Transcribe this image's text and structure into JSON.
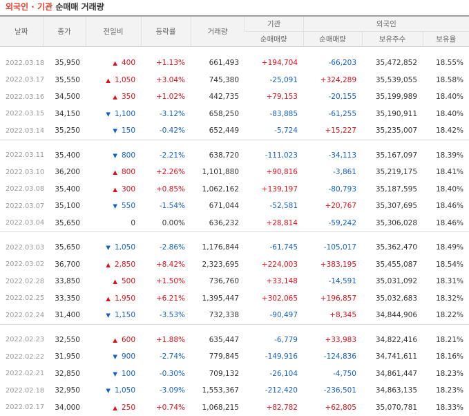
{
  "title": {
    "part1": "외국인 · 기관",
    "part2": "순매매 거래량"
  },
  "headers": {
    "date": "날짜",
    "close": "종가",
    "change": "전일비",
    "rate": "등락률",
    "volume": "거래량",
    "inst": "기관",
    "foreign": "외국인",
    "inst_net": "순매매량",
    "for_net": "순매매량",
    "for_hold": "보유주수",
    "for_ratio": "보유율"
  },
  "colors": {
    "up": "#e0101a",
    "down": "#1560c5"
  },
  "groups": [
    [
      {
        "date": "2022.03.18",
        "close": "35,950",
        "dir": "up",
        "change": "400",
        "rate": "+1.13%",
        "volume": "661,493",
        "inst": "+194,704",
        "foreign": "-66,203",
        "hold": "35,472,852",
        "ratio": "18.55%"
      },
      {
        "date": "2022.03.17",
        "close": "35,550",
        "dir": "up",
        "change": "1,050",
        "rate": "+3.04%",
        "volume": "745,380",
        "inst": "-25,091",
        "foreign": "+324,289",
        "hold": "35,539,055",
        "ratio": "18.58%"
      },
      {
        "date": "2022.03.16",
        "close": "34,500",
        "dir": "up",
        "change": "350",
        "rate": "+1.02%",
        "volume": "442,735",
        "inst": "+79,153",
        "foreign": "-20,155",
        "hold": "35,199,989",
        "ratio": "18.40%"
      },
      {
        "date": "2022.03.15",
        "close": "34,150",
        "dir": "down",
        "change": "1,100",
        "rate": "-3.12%",
        "volume": "658,250",
        "inst": "-83,885",
        "foreign": "-61,255",
        "hold": "35,190,911",
        "ratio": "18.40%"
      },
      {
        "date": "2022.03.14",
        "close": "35,250",
        "dir": "down",
        "change": "150",
        "rate": "-0.42%",
        "volume": "652,449",
        "inst": "-5,724",
        "foreign": "+15,227",
        "hold": "35,235,007",
        "ratio": "18.42%"
      }
    ],
    [
      {
        "date": "2022.03.11",
        "close": "35,400",
        "dir": "down",
        "change": "800",
        "rate": "-2.21%",
        "volume": "638,720",
        "inst": "-111,023",
        "foreign": "-34,113",
        "hold": "35,167,097",
        "ratio": "18.39%"
      },
      {
        "date": "2022.03.10",
        "close": "36,200",
        "dir": "up",
        "change": "800",
        "rate": "+2.26%",
        "volume": "1,101,880",
        "inst": "+90,816",
        "foreign": "-3,861",
        "hold": "35,219,175",
        "ratio": "18.41%"
      },
      {
        "date": "2022.03.08",
        "close": "35,400",
        "dir": "up",
        "change": "300",
        "rate": "+0.85%",
        "volume": "1,062,162",
        "inst": "+139,197",
        "foreign": "-80,793",
        "hold": "35,187,595",
        "ratio": "18.40%"
      },
      {
        "date": "2022.03.07",
        "close": "35,100",
        "dir": "down",
        "change": "550",
        "rate": "-1.54%",
        "volume": "671,044",
        "inst": "-52,581",
        "foreign": "+20,767",
        "hold": "35,307,695",
        "ratio": "18.46%"
      },
      {
        "date": "2022.03.04",
        "close": "35,650",
        "dir": "none",
        "change": "0",
        "rate": "0.00%",
        "volume": "636,232",
        "inst": "+28,814",
        "foreign": "-59,242",
        "hold": "35,306,028",
        "ratio": "18.46%"
      }
    ],
    [
      {
        "date": "2022.03.03",
        "close": "35,650",
        "dir": "down",
        "change": "1,050",
        "rate": "-2.86%",
        "volume": "1,176,844",
        "inst": "-61,745",
        "foreign": "-105,017",
        "hold": "35,362,470",
        "ratio": "18.49%"
      },
      {
        "date": "2022.03.02",
        "close": "36,700",
        "dir": "up",
        "change": "2,850",
        "rate": "+8.42%",
        "volume": "2,323,695",
        "inst": "+224,003",
        "foreign": "+383,195",
        "hold": "35,455,087",
        "ratio": "18.54%"
      },
      {
        "date": "2022.02.28",
        "close": "33,850",
        "dir": "up",
        "change": "500",
        "rate": "+1.50%",
        "volume": "736,760",
        "inst": "+33,148",
        "foreign": "-14,591",
        "hold": "35,031,092",
        "ratio": "18.31%"
      },
      {
        "date": "2022.02.25",
        "close": "33,350",
        "dir": "up",
        "change": "1,950",
        "rate": "+6.21%",
        "volume": "1,395,447",
        "inst": "+302,065",
        "foreign": "+196,857",
        "hold": "35,032,683",
        "ratio": "18.32%"
      },
      {
        "date": "2022.02.24",
        "close": "31,400",
        "dir": "down",
        "change": "1,150",
        "rate": "-3.53%",
        "volume": "732,338",
        "inst": "-90,497",
        "foreign": "+8,345",
        "hold": "34,844,906",
        "ratio": "18.22%"
      }
    ],
    [
      {
        "date": "2022.02.23",
        "close": "32,550",
        "dir": "up",
        "change": "600",
        "rate": "+1.88%",
        "volume": "635,447",
        "inst": "-6,779",
        "foreign": "+33,983",
        "hold": "34,822,416",
        "ratio": "18.21%"
      },
      {
        "date": "2022.02.22",
        "close": "31,950",
        "dir": "down",
        "change": "900",
        "rate": "-2.74%",
        "volume": "779,845",
        "inst": "-149,916",
        "foreign": "-124,836",
        "hold": "34,741,611",
        "ratio": "18.16%"
      },
      {
        "date": "2022.02.21",
        "close": "32,850",
        "dir": "down",
        "change": "100",
        "rate": "-0.30%",
        "volume": "709,132",
        "inst": "-26,104",
        "foreign": "-4,750",
        "hold": "34,861,447",
        "ratio": "18.23%"
      },
      {
        "date": "2022.02.18",
        "close": "32,950",
        "dir": "down",
        "change": "1,050",
        "rate": "-3.09%",
        "volume": "1,553,367",
        "inst": "-212,420",
        "foreign": "-236,501",
        "hold": "34,863,135",
        "ratio": "18.23%"
      },
      {
        "date": "2022.02.17",
        "close": "34,000",
        "dir": "up",
        "change": "250",
        "rate": "+0.74%",
        "volume": "1,068,215",
        "inst": "+82,782",
        "foreign": "+62,805",
        "hold": "35,070,781",
        "ratio": "18.33%"
      }
    ]
  ]
}
